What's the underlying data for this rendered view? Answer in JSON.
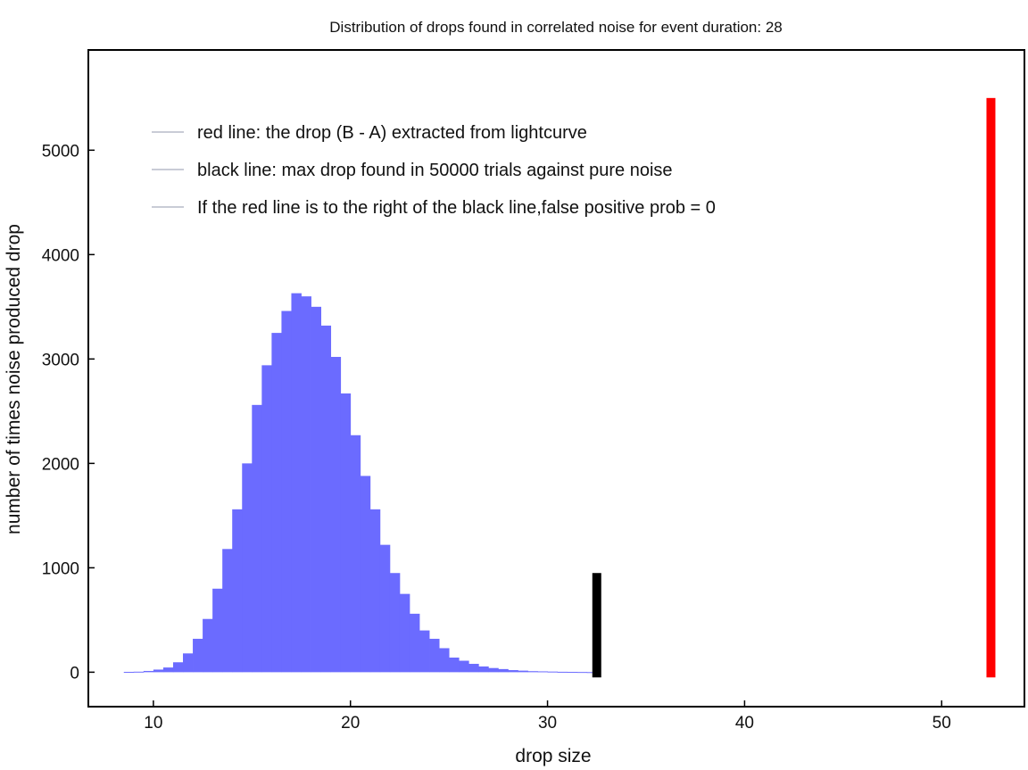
{
  "chart_data": {
    "type": "bar",
    "title": "Distribution of drops found in correlated noise for event duration: 28",
    "xlabel": "drop size",
    "ylabel": "number of times noise produced drop",
    "xlim": [
      6.7,
      54.2
    ],
    "ylim": [
      -330,
      5960
    ],
    "xticks": [
      10,
      20,
      30,
      40,
      50
    ],
    "yticks": [
      0,
      1000,
      2000,
      3000,
      4000,
      5000
    ],
    "grid": false,
    "legend_position": "top-left",
    "legend": [
      "red line: the drop (B - A) extracted from lightcurve",
      "black line: max drop found in 50000 trials against pure noise",
      "If the red line is to the right of the black line,false positive prob = 0"
    ],
    "histogram": {
      "color": "#6b6bff",
      "bin_width": 0.5,
      "bin_starts": [
        8.5,
        9.0,
        9.5,
        10.0,
        10.5,
        11.0,
        11.5,
        12.0,
        12.5,
        13.0,
        13.5,
        14.0,
        14.5,
        15.0,
        15.5,
        16.0,
        16.5,
        17.0,
        17.5,
        18.0,
        18.5,
        19.0,
        19.5,
        20.0,
        20.5,
        21.0,
        21.5,
        22.0,
        22.5,
        23.0,
        23.5,
        24.0,
        24.5,
        25.0,
        25.5,
        26.0,
        26.5,
        27.0,
        27.5,
        28.0,
        28.5,
        29.0,
        29.5,
        30.0,
        30.5,
        31.0,
        31.5,
        32.0
      ],
      "values": [
        3,
        5,
        12,
        25,
        45,
        95,
        180,
        320,
        510,
        800,
        1180,
        1560,
        2000,
        2560,
        2940,
        3250,
        3460,
        3630,
        3600,
        3500,
        3320,
        3020,
        2670,
        2270,
        1880,
        1560,
        1220,
        950,
        750,
        560,
        400,
        320,
        230,
        140,
        110,
        80,
        55,
        40,
        30,
        20,
        15,
        10,
        8,
        6,
        4,
        3,
        2,
        1
      ]
    },
    "black_line": {
      "x": 32.5,
      "y_min": -50,
      "y_max": 950,
      "color": "#000000"
    },
    "red_line": {
      "x": 52.5,
      "y_min": -50,
      "y_max": 5500,
      "color": "#ff0000"
    }
  }
}
